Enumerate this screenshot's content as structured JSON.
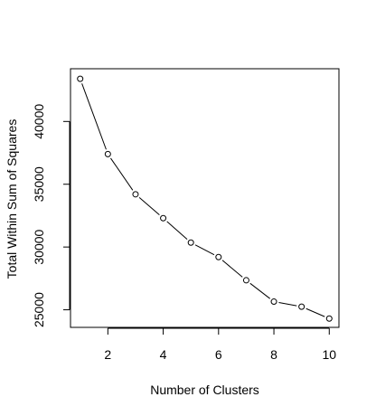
{
  "chart_data": {
    "type": "line",
    "title": "",
    "xlabel": "Number of Clusters",
    "ylabel": "Total Within Sum of Squares",
    "x": [
      1,
      2,
      3,
      4,
      5,
      6,
      7,
      8,
      9,
      10
    ],
    "series": [
      {
        "values": [
          43400,
          37400,
          34200,
          32300,
          30350,
          29200,
          27350,
          25650,
          25250,
          24300
        ]
      }
    ],
    "xlim": [
      0.65,
      10.35
    ],
    "ylim": [
      23600,
      44200
    ],
    "xticks": [
      2,
      4,
      6,
      8,
      10
    ],
    "yticks": [
      25000,
      30000,
      35000,
      40000
    ],
    "xtick_labels": [
      "2",
      "4",
      "6",
      "8",
      "10"
    ],
    "ytick_labels": [
      "25000",
      "30000",
      "35000",
      "40000"
    ],
    "grid": false,
    "legend": "none",
    "style": {
      "line_color": "#000000",
      "marker": "open-circle",
      "background": "#ffffff",
      "frame_color": "#000000"
    }
  }
}
